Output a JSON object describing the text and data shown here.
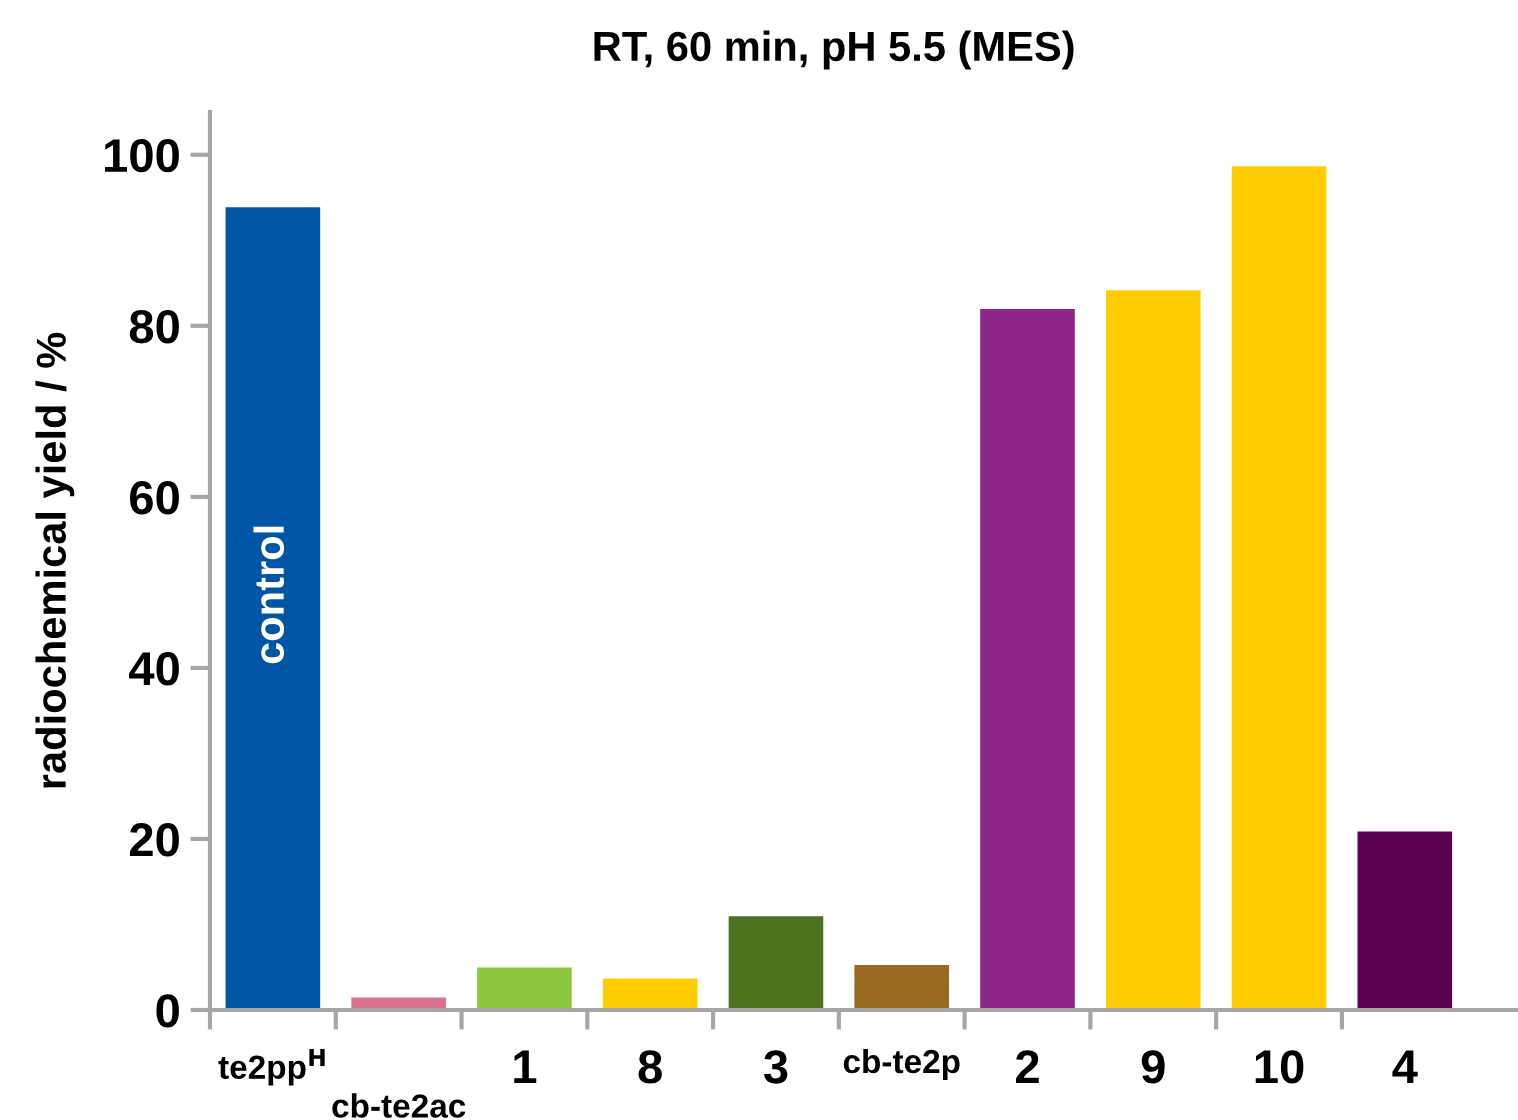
{
  "chart_data": {
    "type": "bar",
    "title": "RT, 60 min, pH 5.5 (MES)",
    "ylabel": "radiochemical yield / %",
    "categories": [
      "te2pp$^{H}$",
      "cb-te2ac",
      "1",
      "8",
      "3",
      "cb-te2p",
      "2",
      "9",
      "10",
      "4"
    ],
    "values": [
      94.0,
      1.6,
      5.1,
      3.8,
      11.1,
      5.4,
      82.1,
      84.3,
      98.8,
      21.0
    ],
    "colors": [
      "#0055a4",
      "#d9728a",
      "#8dc63f",
      "#ffcc00",
      "#4b7320",
      "#9a6a22",
      "#8e2589",
      "#ffcc00",
      "#ffcc00",
      "#5a0050"
    ],
    "ylim": [
      0,
      105
    ],
    "yticks": [
      0,
      20,
      40,
      60,
      80,
      100
    ],
    "grid": false,
    "annotations": [
      "control"
    ]
  }
}
